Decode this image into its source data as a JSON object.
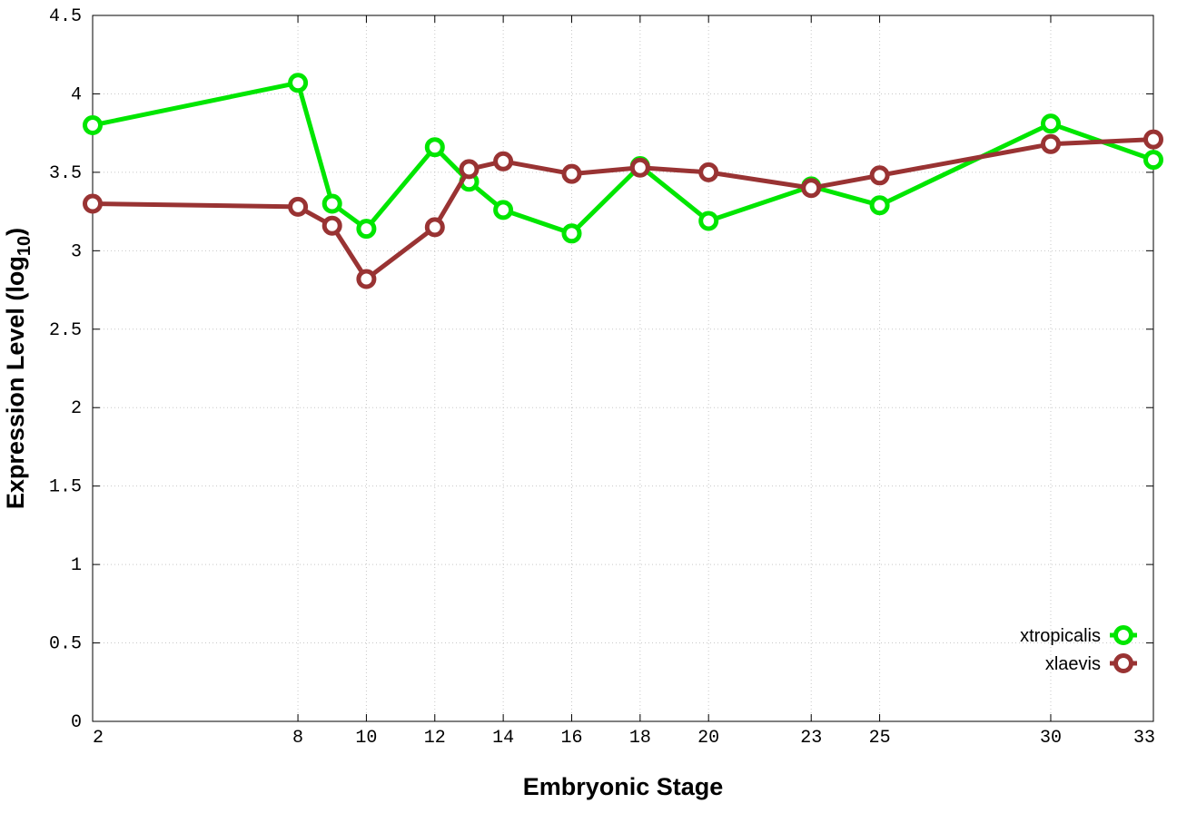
{
  "chart_data": {
    "type": "line",
    "title": "",
    "xlabel": "Embryonic Stage",
    "ylabel_main": "Expression Level (log",
    "ylabel_sub": "10",
    "ylabel_close": ")",
    "x_ticks": [
      2,
      8,
      10,
      12,
      14,
      16,
      18,
      20,
      23,
      25,
      30,
      33
    ],
    "y_ticks": [
      "0",
      "0.5",
      "1",
      "1.5",
      "2",
      "2.5",
      "3",
      "3.5",
      "4",
      "4.5"
    ],
    "xlim": [
      2,
      33
    ],
    "ylim": [
      0,
      4.5
    ],
    "grid": true,
    "legend_position": "bottom-right",
    "series": [
      {
        "name": "xtropicalis",
        "color": "#00e600",
        "x": [
          2,
          8,
          9,
          10,
          12,
          13,
          14,
          16,
          18,
          20,
          23,
          25,
          30,
          33
        ],
        "y": [
          3.8,
          4.07,
          3.3,
          3.14,
          3.66,
          3.44,
          3.26,
          3.11,
          3.54,
          3.19,
          3.41,
          3.29,
          3.81,
          3.58
        ]
      },
      {
        "name": "xlaevis",
        "color": "#993333",
        "x": [
          2,
          8,
          9,
          10,
          12,
          13,
          14,
          16,
          18,
          20,
          23,
          25,
          30,
          33
        ],
        "y": [
          3.3,
          3.28,
          3.16,
          2.82,
          3.15,
          3.52,
          3.57,
          3.49,
          3.53,
          3.5,
          3.4,
          3.48,
          3.68,
          3.71
        ]
      }
    ]
  }
}
